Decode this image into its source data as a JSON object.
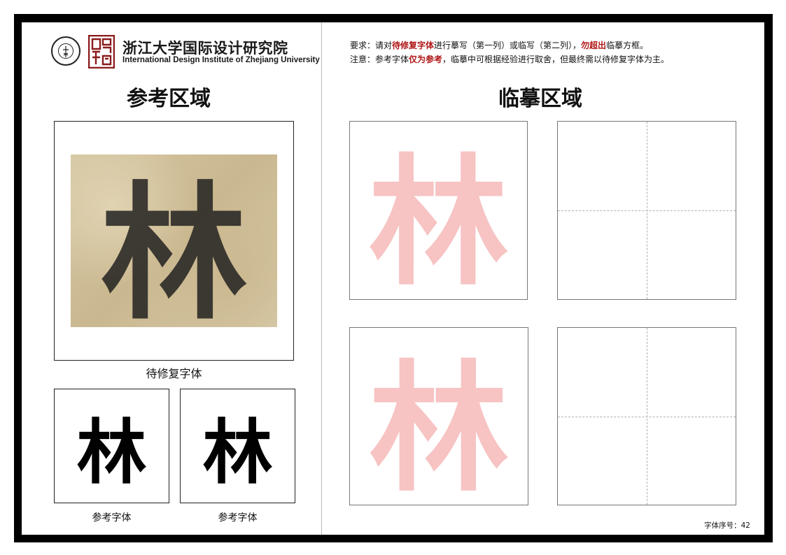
{
  "institute": {
    "name_cn": "浙江大学国际设计研究院",
    "name_en": "International Design Institute of Zhejiang University",
    "logo_icon": "zju-seal-icon",
    "stamp_icon": "red-seal-stamp-icon",
    "brand_color": "#8b1a1a"
  },
  "reference_area": {
    "title": "参考区域",
    "main_caption": "待修复字体",
    "main_glyph": "林",
    "ref_glyph": "林",
    "ref_captions": [
      "参考字体",
      "参考字体"
    ]
  },
  "copy_area": {
    "title": "临摹区域",
    "trace_glyph": "林",
    "trace_color": "#f7c3c3"
  },
  "instructions": {
    "line1": {
      "prefix": "要求：请对",
      "red1": "待修复字体",
      "mid": "进行摹写（第一列）或临写（第二列），",
      "red2": "勿超出",
      "suffix": "临摹方框。"
    },
    "line2": {
      "prefix": "注意：参考字体",
      "red1": "仅为参考",
      "suffix": "，临摹中可根据经验进行取舍，但最终需以待修复字体为主。"
    },
    "accent_color": "#b01818"
  },
  "footer": {
    "label": "字体序号：42"
  }
}
